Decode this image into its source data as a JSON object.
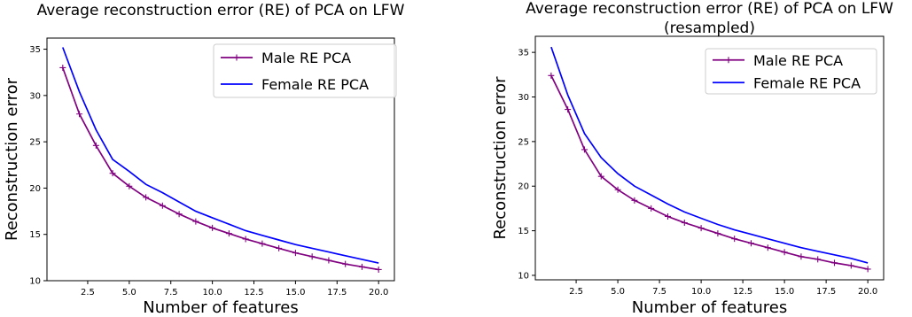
{
  "chart_data": [
    {
      "type": "line",
      "title": [
        "Average reconstruction error (RE) of PCA on LFW"
      ],
      "xlabel": "Number of features",
      "ylabel": "Reconstruction error",
      "xlim": [
        0.05,
        20.95
      ],
      "ylim": [
        10.0,
        36.2
      ],
      "xticks": [
        2.5,
        5.0,
        7.5,
        10.0,
        12.5,
        15.0,
        17.5,
        20.0
      ],
      "xtick_labels": [
        "2.5",
        "5.0",
        "7.5",
        "10.0",
        "12.5",
        "15.0",
        "17.5",
        "20.0"
      ],
      "yticks": [
        10,
        15,
        20,
        25,
        30,
        35
      ],
      "ytick_labels": [
        "10",
        "15",
        "20",
        "25",
        "30",
        "35"
      ],
      "grid": false,
      "legend": "upper right",
      "x": [
        1,
        2,
        3,
        4,
        5,
        6,
        7,
        8,
        9,
        10,
        11,
        12,
        13,
        14,
        15,
        16,
        17,
        18,
        19,
        20
      ],
      "series": [
        {
          "name": "Male RE PCA",
          "color": "#800080",
          "marker": "plus",
          "values": [
            33.0,
            28.0,
            24.6,
            21.6,
            20.2,
            19.0,
            18.1,
            17.2,
            16.4,
            15.7,
            15.1,
            14.5,
            14.0,
            13.5,
            13.0,
            12.6,
            12.2,
            11.8,
            11.5,
            11.2
          ]
        },
        {
          "name": "Female RE PCA",
          "color": "#0000ff",
          "marker": "none",
          "values": [
            35.2,
            30.4,
            26.3,
            23.1,
            21.8,
            20.4,
            19.5,
            18.5,
            17.5,
            16.8,
            16.1,
            15.4,
            14.9,
            14.4,
            13.9,
            13.5,
            13.1,
            12.7,
            12.3,
            11.9
          ]
        }
      ]
    },
    {
      "type": "line",
      "title": [
        "Average reconstruction error (RE) of PCA on LFW",
        "(resampled)"
      ],
      "xlabel": "Number of features",
      "ylabel": "Reconstruction error",
      "xlim": [
        0.05,
        20.95
      ],
      "ylim": [
        9.5,
        36.8
      ],
      "xticks": [
        2.5,
        5.0,
        7.5,
        10.0,
        12.5,
        15.0,
        17.5,
        20.0
      ],
      "xtick_labels": [
        "2.5",
        "5.0",
        "7.5",
        "10.0",
        "12.5",
        "15.0",
        "17.5",
        "20.0"
      ],
      "yticks": [
        10,
        15,
        20,
        25,
        30,
        35
      ],
      "ytick_labels": [
        "10",
        "15",
        "20",
        "25",
        "30",
        "35"
      ],
      "grid": false,
      "legend": "upper right",
      "x": [
        1,
        2,
        3,
        4,
        5,
        6,
        7,
        8,
        9,
        10,
        11,
        12,
        13,
        14,
        15,
        16,
        17,
        18,
        19,
        20
      ],
      "series": [
        {
          "name": "Male RE PCA",
          "color": "#800080",
          "marker": "plus",
          "values": [
            32.4,
            28.6,
            24.1,
            21.1,
            19.6,
            18.4,
            17.5,
            16.6,
            15.9,
            15.3,
            14.7,
            14.1,
            13.6,
            13.1,
            12.6,
            12.1,
            11.8,
            11.4,
            11.1,
            10.7
          ]
        },
        {
          "name": "Female RE PCA",
          "color": "#0000ff",
          "marker": "none",
          "values": [
            35.6,
            30.2,
            25.9,
            23.2,
            21.4,
            20.0,
            19.0,
            18.0,
            17.1,
            16.4,
            15.7,
            15.1,
            14.6,
            14.1,
            13.6,
            13.1,
            12.7,
            12.3,
            11.9,
            11.4
          ]
        }
      ]
    }
  ]
}
